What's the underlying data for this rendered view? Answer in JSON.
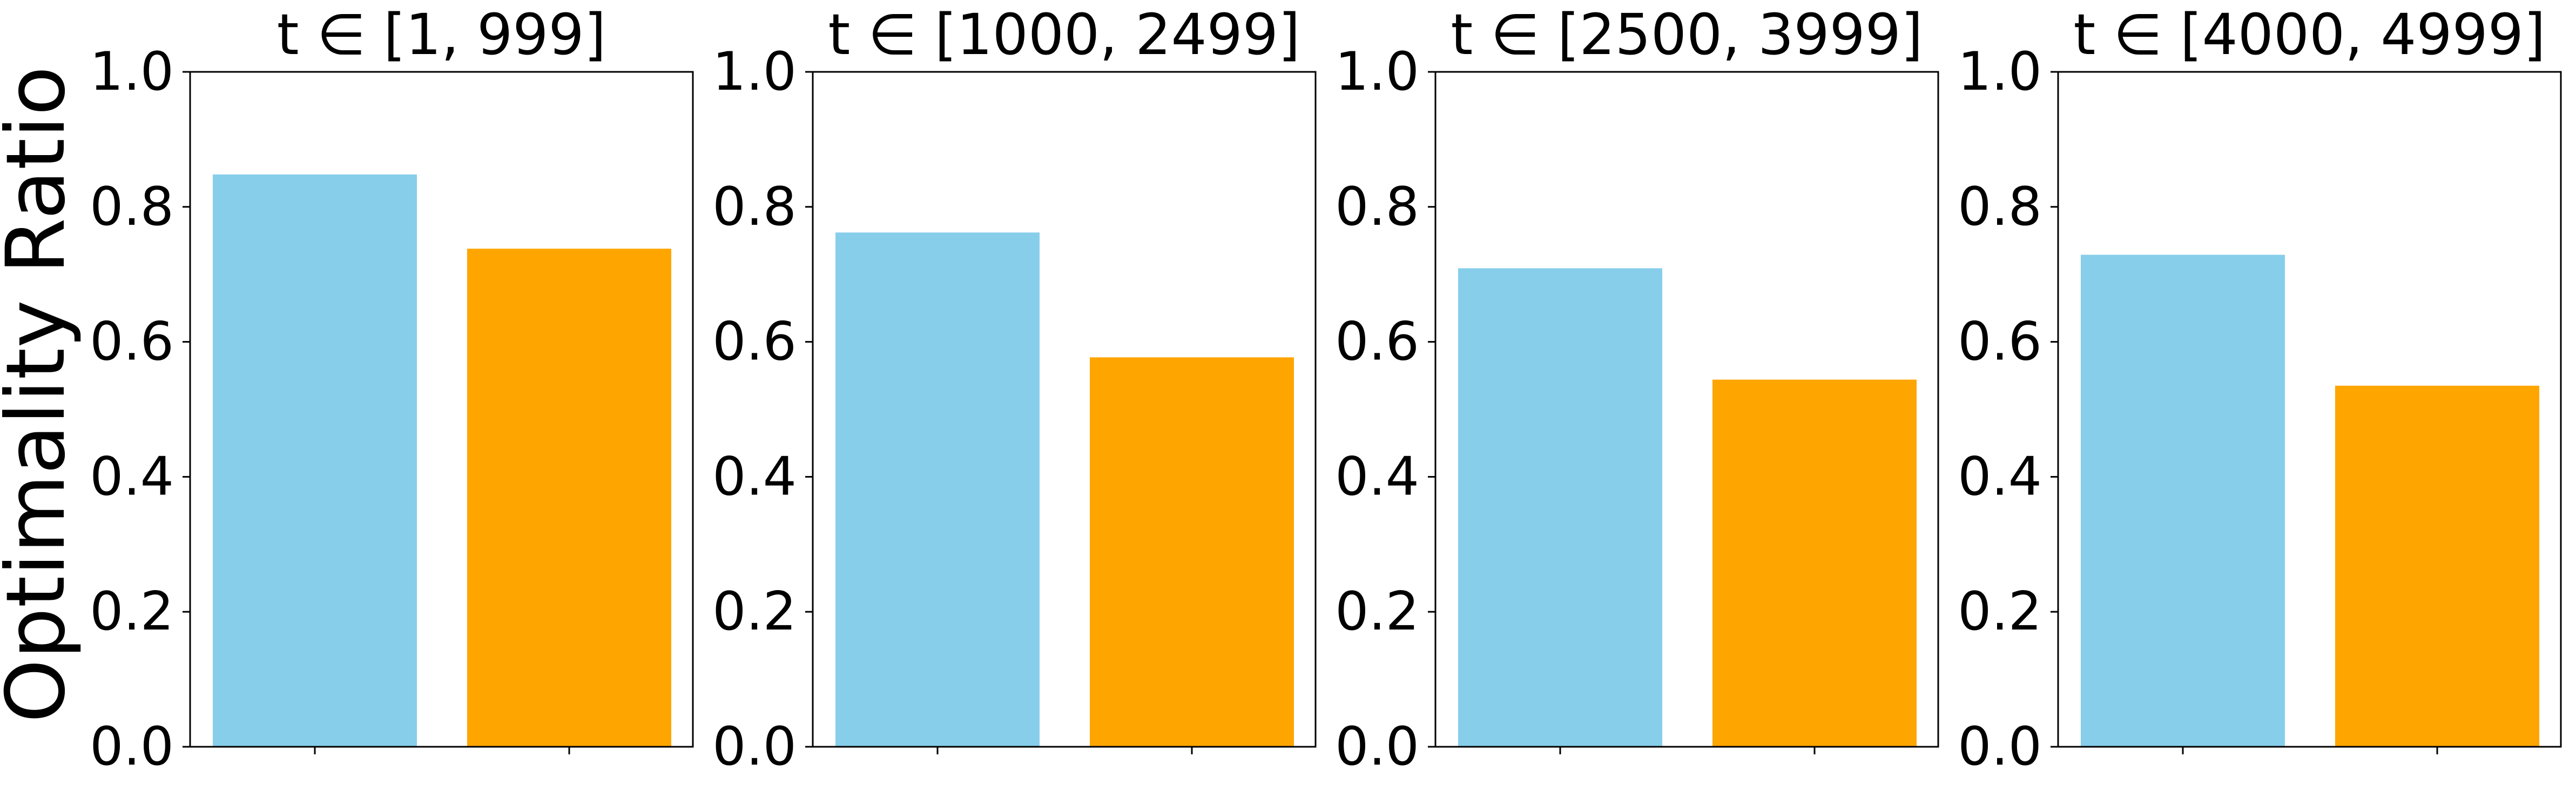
{
  "chart_data": {
    "type": "bar",
    "ylabel": "Optimality Ratio",
    "yticks": [
      "0.0",
      "0.2",
      "0.4",
      "0.6",
      "0.8",
      "1.0"
    ],
    "ylim": [
      0,
      1.0
    ],
    "grid": false,
    "legend": "none",
    "bar_colors": [
      "#87CEEB",
      "#FFA500"
    ],
    "panels": [
      {
        "title": "t ∈ [1, 999]",
        "values": [
          0.848,
          0.738
        ]
      },
      {
        "title": "t ∈ [1000, 2499]",
        "values": [
          0.762,
          0.577
        ]
      },
      {
        "title": "t ∈ [2500, 3999]",
        "values": [
          0.709,
          0.544
        ]
      },
      {
        "title": "t ∈ [4000, 4999]",
        "values": [
          0.729,
          0.535
        ]
      }
    ]
  }
}
